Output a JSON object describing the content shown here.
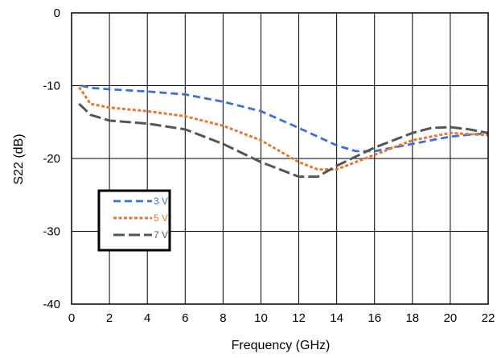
{
  "chart_data": {
    "type": "line",
    "title": "",
    "xlabel": "Frequency (GHz)",
    "ylabel": "S22 (dB)",
    "xlim": [
      0,
      22
    ],
    "ylim": [
      -40,
      0
    ],
    "xticks": [
      0,
      2,
      4,
      6,
      8,
      10,
      12,
      14,
      16,
      18,
      20,
      22
    ],
    "yticks": [
      0,
      -10,
      -20,
      -30,
      -40
    ],
    "grid": true,
    "legend_placement": "center-left",
    "series": [
      {
        "name": "3 V",
        "color": "#3b6fd9",
        "dash": "dashed",
        "x": [
          0.5,
          1,
          2,
          4,
          6,
          8,
          10,
          12,
          14,
          15,
          16,
          18,
          20,
          22
        ],
        "y": [
          -10.0,
          -10.3,
          -10.5,
          -10.8,
          -11.2,
          -12.2,
          -13.5,
          -15.8,
          -18.2,
          -19.0,
          -19.0,
          -18.0,
          -17.0,
          -16.5
        ]
      },
      {
        "name": "5 V",
        "color": "#e8762b",
        "dash": "dotted",
        "x": [
          0.4,
          1,
          2,
          4,
          6,
          8,
          10,
          12,
          13,
          14,
          16,
          18,
          20,
          22
        ],
        "y": [
          -10.2,
          -12.5,
          -13.0,
          -13.5,
          -14.2,
          -15.5,
          -17.5,
          -20.5,
          -21.5,
          -21.5,
          -19.5,
          -17.5,
          -16.5,
          -16.8
        ]
      },
      {
        "name": "7 V",
        "color": "#555555",
        "dash": "long-dash",
        "x": [
          0.4,
          1,
          2,
          4,
          6,
          8,
          10,
          12,
          13,
          14,
          16,
          18,
          19,
          20,
          21,
          22
        ],
        "y": [
          -12.5,
          -14.0,
          -14.8,
          -15.2,
          -16.0,
          -18.0,
          -20.5,
          -22.5,
          -22.5,
          -21.0,
          -18.5,
          -16.5,
          -15.8,
          -15.7,
          -16.0,
          -16.5
        ]
      }
    ]
  }
}
